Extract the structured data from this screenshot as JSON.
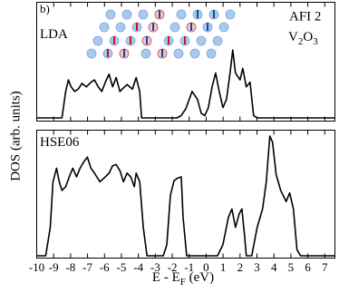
{
  "chart_data": [
    {
      "type": "line",
      "label": "LDA",
      "label_color": "#e00000",
      "annotations": [
        "b)",
        "AFI 2"
      ],
      "formula": [
        "V",
        "2",
        "O",
        "3"
      ],
      "ylabel": "DOS (arb. units)",
      "color": "#000000",
      "xlim": [
        -10,
        7.6
      ],
      "ylim": [
        0,
        1
      ],
      "x": [
        -10,
        -8.51,
        -8.29,
        -8.13,
        -7.97,
        -7.76,
        -7.55,
        -7.33,
        -7.07,
        -6.8,
        -6.59,
        -6.37,
        -6.16,
        -5.95,
        -5.73,
        -5.52,
        -5.31,
        -5.09,
        -4.88,
        -4.67,
        -4.35,
        -4.13,
        -3.92,
        -3.81,
        -1.73,
        -1.47,
        -1.2,
        -0.83,
        -0.51,
        -0.29,
        -0.08,
        0.13,
        0.35,
        0.56,
        0.77,
        0.99,
        1.2,
        1.41,
        1.57,
        1.73,
        2.0,
        2.16,
        2.37,
        2.59,
        2.8,
        3.01,
        7.6
      ],
      "values": [
        0,
        0,
        0.23,
        0.33,
        0.27,
        0.23,
        0.25,
        0.3,
        0.27,
        0.31,
        0.33,
        0.27,
        0.23,
        0.31,
        0.38,
        0.27,
        0.35,
        0.23,
        0.26,
        0.29,
        0.25,
        0.35,
        0.23,
        0,
        0,
        0.02,
        0.08,
        0.23,
        0.16,
        0.04,
        0.02,
        0.09,
        0.27,
        0.39,
        0.23,
        0.09,
        0.16,
        0.39,
        0.59,
        0.39,
        0.33,
        0.43,
        0.27,
        0.31,
        0.02,
        0,
        0
      ]
    },
    {
      "type": "line",
      "label": "HSE06",
      "label_color": "#e00000",
      "xlabel": [
        "E - E",
        "F",
        " (eV)"
      ],
      "color": "#000000",
      "xlim": [
        -10,
        7.6
      ],
      "ylim": [
        0,
        1
      ],
      "xticks": [
        -10,
        -9,
        -8,
        -7,
        -6,
        -5,
        -4,
        -3,
        -2,
        -1,
        0,
        1,
        2,
        3,
        4,
        5,
        6,
        7
      ],
      "x": [
        -10,
        -9.47,
        -9.2,
        -9.04,
        -8.83,
        -8.67,
        -8.51,
        -8.29,
        -8.08,
        -7.87,
        -7.65,
        -7.44,
        -7.23,
        -7.01,
        -6.8,
        -6.59,
        -6.27,
        -5.95,
        -5.73,
        -5.52,
        -5.31,
        -5.09,
        -4.88,
        -4.67,
        -4.45,
        -4.24,
        -4.13,
        -3.92,
        -3.71,
        -3.49,
        -2.53,
        -2.32,
        -2.11,
        -1.89,
        -1.68,
        -1.47,
        -1.36,
        -1.15,
        0.67,
        0.99,
        1.31,
        1.52,
        1.73,
        1.95,
        2.11,
        2.27,
        2.37,
        2.69,
        3.01,
        3.33,
        3.55,
        3.65,
        3.76,
        3.92,
        4.13,
        4.4,
        4.72,
        4.93,
        5.15,
        5.36,
        5.57,
        7.6
      ],
      "values": [
        0,
        0,
        0.23,
        0.6,
        0.71,
        0.6,
        0.53,
        0.56,
        0.64,
        0.71,
        0.64,
        0.71,
        0.76,
        0.8,
        0.71,
        0.67,
        0.6,
        0.64,
        0.67,
        0.73,
        0.74,
        0.69,
        0.6,
        0.67,
        0.64,
        0.56,
        0.67,
        0.6,
        0.23,
        0,
        0,
        0.09,
        0.49,
        0.61,
        0.63,
        0.64,
        0.31,
        0,
        0,
        0.09,
        0.31,
        0.38,
        0.23,
        0.34,
        0.38,
        0.16,
        0,
        0,
        0.23,
        0.38,
        0.6,
        0.78,
        0.97,
        0.92,
        0.66,
        0.53,
        0.44,
        0.51,
        0.38,
        0.05,
        0,
        0
      ]
    }
  ]
}
